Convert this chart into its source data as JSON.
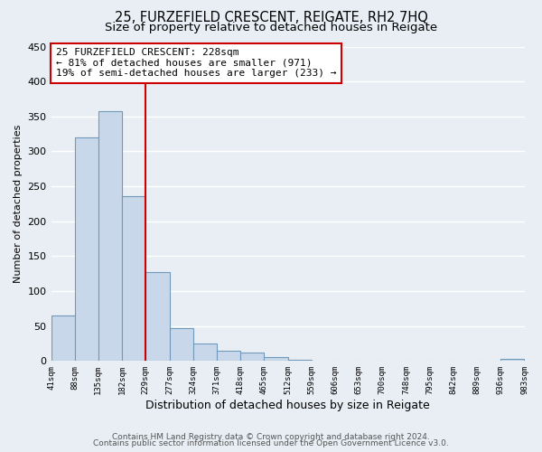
{
  "title1": "25, FURZEFIELD CRESCENT, REIGATE, RH2 7HQ",
  "title2": "Size of property relative to detached houses in Reigate",
  "xlabel": "Distribution of detached houses by size in Reigate",
  "ylabel": "Number of detached properties",
  "footer1": "Contains HM Land Registry data © Crown copyright and database right 2024.",
  "footer2": "Contains public sector information licensed under the Open Government Licence v3.0.",
  "bin_edges": [
    41,
    88,
    135,
    182,
    229,
    277,
    324,
    371,
    418,
    465,
    512,
    559,
    606,
    653,
    700,
    748,
    795,
    842,
    889,
    936,
    983
  ],
  "bar_heights": [
    65,
    320,
    358,
    236,
    127,
    47,
    25,
    15,
    12,
    5,
    2,
    1,
    0,
    1,
    0,
    0,
    1,
    0,
    0,
    3
  ],
  "bar_color": "#c8d8ea",
  "bar_edge_color": "#7099bb",
  "vline_x": 228,
  "vline_color": "#cc0000",
  "annotation_line1": "25 FURZEFIELD CRESCENT: 228sqm",
  "annotation_line2": "← 81% of detached houses are smaller (971)",
  "annotation_line3": "19% of semi-detached houses are larger (233) →",
  "annotation_box_color": "#cc0000",
  "annotation_text_color": "#000000",
  "ylim": [
    0,
    450
  ],
  "xlim_left": 41,
  "xlim_right": 983,
  "tick_labels": [
    "41sqm",
    "88sqm",
    "135sqm",
    "182sqm",
    "229sqm",
    "277sqm",
    "324sqm",
    "371sqm",
    "418sqm",
    "465sqm",
    "512sqm",
    "559sqm",
    "606sqm",
    "653sqm",
    "700sqm",
    "748sqm",
    "795sqm",
    "842sqm",
    "889sqm",
    "936sqm",
    "983sqm"
  ],
  "background_color": "#e8eef4",
  "plot_bg_color": "#e8eef4",
  "grid_color": "#ffffff",
  "title1_fontsize": 10.5,
  "title2_fontsize": 9.5,
  "xlabel_fontsize": 9,
  "ylabel_fontsize": 8,
  "footer_fontsize": 6.5,
  "yticks": [
    0,
    50,
    100,
    150,
    200,
    250,
    300,
    350,
    400,
    450
  ]
}
